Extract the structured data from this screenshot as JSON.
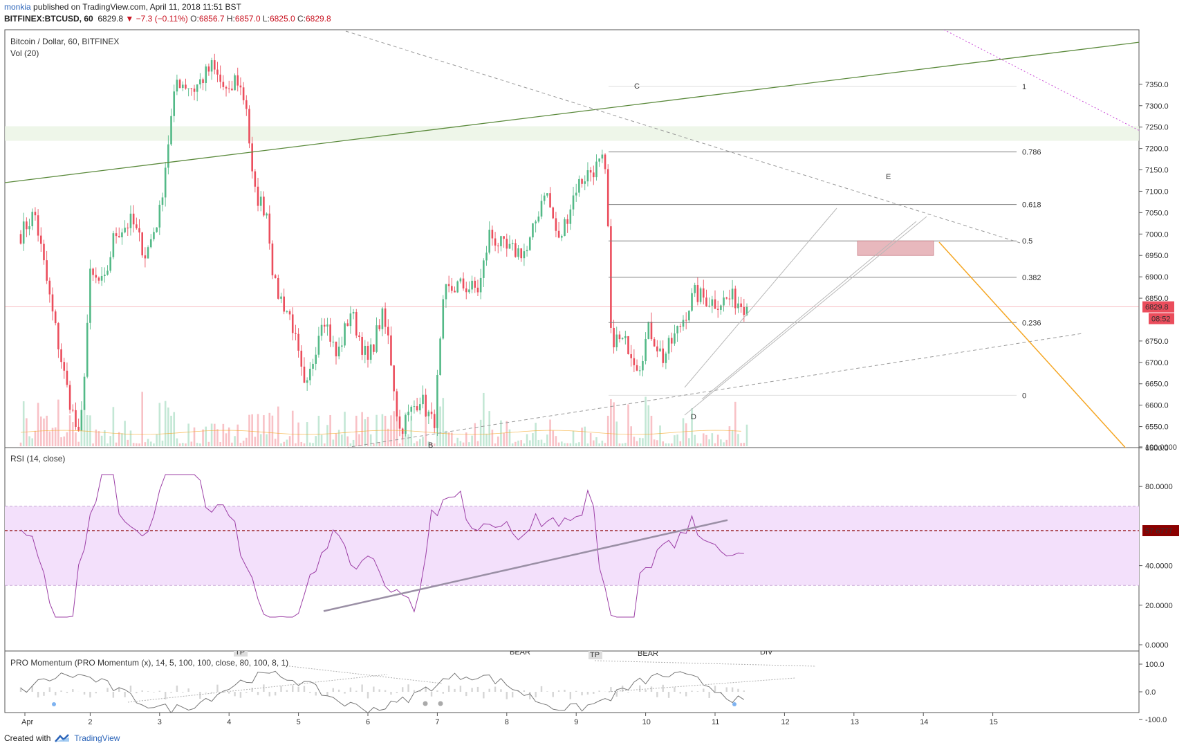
{
  "header": {
    "author": "monkia",
    "published_text": " published on TradingView.com, April 11, 2018 11:51 BST",
    "symbol": "BITFINEX:BTCUSD, 60",
    "last": "6829.8",
    "change": "−7.3 (−0.11%)",
    "o_label": "O:",
    "o": "6856.7",
    "h_label": "H:",
    "h": "6857.0",
    "l_label": "L:",
    "l": "6825.0",
    "c_label": "C:",
    "c": "6829.8"
  },
  "colors": {
    "up": "#53b987",
    "down": "#eb4d5c",
    "trend": "#5b8a3c",
    "fib": "#808080",
    "rsi_band": "#f3e0fb",
    "rsi_line": "#9c3fa6",
    "orange": "#f5a623",
    "purple_dots": "#c94bd6"
  },
  "main_pane": {
    "legend_title": "Bitcoin / Dollar, 60, BITFINEX",
    "legend_vol": "Vol (20)",
    "price_ticks": [
      "7350.0",
      "7300.0",
      "7250.0",
      "7200.0",
      "7150.0",
      "7100.0",
      "7050.0",
      "7000.0",
      "6950.0",
      "6900.0",
      "6850.0",
      "6750.0",
      "6700.0",
      "6650.0",
      "6600.0",
      "6550.0",
      "6500.0"
    ],
    "last_price_badge": "6829.8",
    "countdown_badge": "08:52",
    "fib_levels": [
      {
        "label": "1",
        "price": 7345
      },
      {
        "label": "0.786",
        "price": 7192
      },
      {
        "label": "0.618",
        "price": 7069
      },
      {
        "label": "0.5",
        "price": 6984
      },
      {
        "label": "0.382",
        "price": 6899
      },
      {
        "label": "0.236",
        "price": 6793
      },
      {
        "label": "0",
        "price": 6623
      }
    ],
    "wave_labels": [
      "C",
      "E",
      "D",
      "B"
    ]
  },
  "rsi_pane": {
    "legend": "RSI (14, close)",
    "ticks": [
      "100.0000",
      "80.0000",
      "40.0000",
      "20.0000",
      "0.0000"
    ],
    "value_badge": "57.6777",
    "band_upper": 70,
    "band_lower": 30,
    "current": 57.68
  },
  "momentum_pane": {
    "legend": "PRO Momentum (PRO Momentum (x), 14, 5, 100, 100, close, 80, 100, 8, 1)",
    "ticks": [
      "100.0",
      "0.0",
      "-100.0"
    ],
    "tags": [
      "TP",
      "BEAR",
      "TP",
      "BEAR",
      "DIV"
    ]
  },
  "time_axis": {
    "labels": [
      "Apr",
      "2",
      "3",
      "4",
      "5",
      "6",
      "7",
      "8",
      "9",
      "10",
      "11",
      "12",
      "13",
      "14",
      "15"
    ]
  },
  "footer": {
    "created_with": "Created with",
    "brand": "TradingView"
  },
  "chart_data": {
    "type": "candlestick",
    "title": "Bitcoin / Dollar, 60, BITFINEX",
    "price_range": [
      6490,
      7380
    ],
    "anchors": [
      {
        "t": 0.0,
        "p": 7000
      },
      {
        "t": 0.2,
        "p": 7050
      },
      {
        "t": 0.45,
        "p": 6820
      },
      {
        "t": 0.65,
        "p": 6650
      },
      {
        "t": 0.85,
        "p": 6510
      },
      {
        "t": 1.0,
        "p": 6900
      },
      {
        "t": 1.2,
        "p": 6880
      },
      {
        "t": 1.35,
        "p": 7000
      },
      {
        "t": 1.6,
        "p": 7030
      },
      {
        "t": 1.8,
        "p": 6950
      },
      {
        "t": 2.0,
        "p": 7050
      },
      {
        "t": 2.15,
        "p": 7250
      },
      {
        "t": 2.25,
        "p": 7360
      },
      {
        "t": 2.5,
        "p": 7340
      },
      {
        "t": 2.75,
        "p": 7390
      },
      {
        "t": 3.0,
        "p": 7320
      },
      {
        "t": 3.1,
        "p": 7370
      },
      {
        "t": 3.25,
        "p": 7300
      },
      {
        "t": 3.35,
        "p": 7100
      },
      {
        "t": 3.55,
        "p": 7050
      },
      {
        "t": 3.65,
        "p": 6880
      },
      {
        "t": 3.9,
        "p": 6800
      },
      {
        "t": 4.1,
        "p": 6620
      },
      {
        "t": 4.35,
        "p": 6820
      },
      {
        "t": 4.55,
        "p": 6710
      },
      {
        "t": 4.75,
        "p": 6820
      },
      {
        "t": 5.0,
        "p": 6700
      },
      {
        "t": 5.2,
        "p": 6810
      },
      {
        "t": 5.3,
        "p": 6750
      },
      {
        "t": 5.45,
        "p": 6540
      },
      {
        "t": 5.75,
        "p": 6620
      },
      {
        "t": 5.95,
        "p": 6550
      },
      {
        "t": 6.1,
        "p": 6860
      },
      {
        "t": 6.3,
        "p": 6880
      },
      {
        "t": 6.6,
        "p": 6870
      },
      {
        "t": 6.75,
        "p": 7000
      },
      {
        "t": 7.0,
        "p": 6960
      },
      {
        "t": 7.3,
        "p": 6960
      },
      {
        "t": 7.55,
        "p": 7110
      },
      {
        "t": 7.75,
        "p": 6980
      },
      {
        "t": 8.0,
        "p": 7110
      },
      {
        "t": 8.15,
        "p": 7140
      },
      {
        "t": 8.4,
        "p": 7170
      },
      {
        "t": 8.45,
        "p": 7060
      },
      {
        "t": 8.5,
        "p": 6760
      },
      {
        "t": 8.75,
        "p": 6740
      },
      {
        "t": 8.9,
        "p": 6690
      },
      {
        "t": 9.05,
        "p": 6780
      },
      {
        "t": 9.25,
        "p": 6710
      },
      {
        "t": 9.45,
        "p": 6770
      },
      {
        "t": 9.7,
        "p": 6860
      },
      {
        "t": 10.0,
        "p": 6840
      },
      {
        "t": 10.25,
        "p": 6850
      },
      {
        "t": 10.45,
        "p": 6830
      }
    ],
    "rsi": {
      "ylim": [
        0,
        100
      ],
      "current": 57.68
    }
  }
}
